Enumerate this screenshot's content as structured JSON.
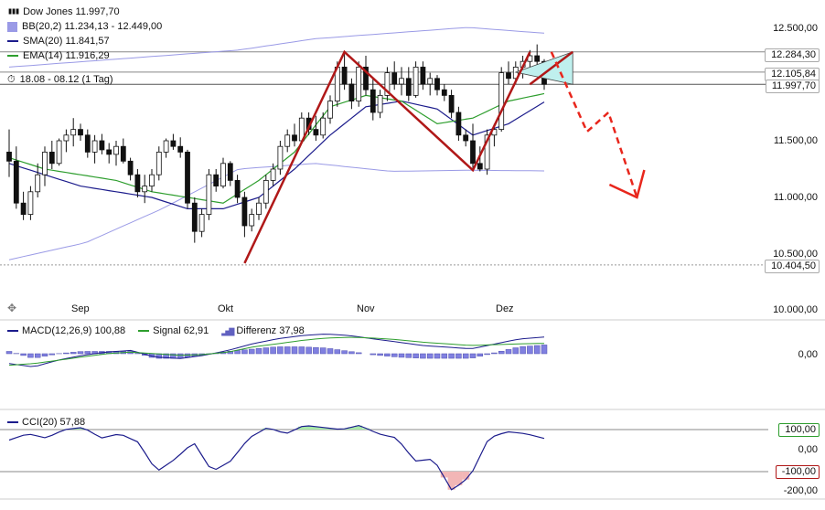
{
  "legend": {
    "title": "Dow Jones 11.997,70",
    "bb": "BB(20,2) 11.234,13 - 12.449,00",
    "sma": "SMA(20) 11.841,57",
    "ema": "EMA(14) 11.916,29",
    "period": "18.08 - 08.12 (1 Tag)"
  },
  "months": [
    "Sep",
    "Okt",
    "Nov",
    "Dez"
  ],
  "price_axis": [
    "12.500,00",
    "11.500,00",
    "11.000,00",
    "10.500,00",
    "10.000,00"
  ],
  "price_tags": [
    "12.284,30",
    "12.105,84",
    "11.997,70",
    "10.404,50"
  ],
  "macd_legend": {
    "macd": "MACD(12,26,9) 100,88",
    "signal": "Signal 62,91",
    "diff": "Differenz 37,98"
  },
  "macd_axis": "0,00",
  "cci_legend": "CCI(20) 57,88",
  "cci_axis": [
    "100,00",
    "0,00",
    "-100,00",
    "-200,00"
  ],
  "colors": {
    "up": "#ffffff",
    "down": "#111111",
    "bb": "#9a9ae6",
    "sma": "#1c1c8c",
    "ema": "#2e9e2e",
    "pattern": "#b01818",
    "triangle": "#bff0ee",
    "forecast": "#e8261c",
    "macd_hist": "#8080e0",
    "cci_pos": "#a8e8a8",
    "cci_neg": "#f2b6b6"
  },
  "chart_data": {
    "type": "candlestick",
    "title": "Dow Jones",
    "candles": [
      [
        11400,
        11600,
        11180,
        11320
      ],
      [
        11320,
        11450,
        10900,
        10950
      ],
      [
        10950,
        11050,
        10800,
        10850
      ],
      [
        10850,
        11100,
        10800,
        11050
      ],
      [
        11050,
        11300,
        11000,
        11200
      ],
      [
        11200,
        11450,
        11100,
        11400
      ],
      [
        11400,
        11500,
        11250,
        11300
      ],
      [
        11300,
        11520,
        11280,
        11500
      ],
      [
        11500,
        11600,
        11400,
        11550
      ],
      [
        11550,
        11700,
        11450,
        11600
      ],
      [
        11600,
        11650,
        11500,
        11550
      ],
      [
        11550,
        11600,
        11350,
        11400
      ],
      [
        11400,
        11550,
        11300,
        11500
      ],
      [
        11500,
        11560,
        11380,
        11420
      ],
      [
        11420,
        11480,
        11300,
        11380
      ],
      [
        11380,
        11500,
        11280,
        11450
      ],
      [
        11450,
        11520,
        11300,
        11320
      ],
      [
        11320,
        11350,
        11150,
        11200
      ],
      [
        11200,
        11250,
        11000,
        11050
      ],
      [
        11050,
        11200,
        10950,
        11100
      ],
      [
        11100,
        11250,
        11050,
        11200
      ],
      [
        11200,
        11450,
        11150,
        11400
      ],
      [
        11400,
        11520,
        11350,
        11500
      ],
      [
        11500,
        11560,
        11420,
        11450
      ],
      [
        11450,
        11530,
        11350,
        11400
      ],
      [
        11400,
        11420,
        10900,
        10950
      ],
      [
        10950,
        11000,
        10600,
        10700
      ],
      [
        10700,
        10900,
        10650,
        10850
      ],
      [
        10850,
        11250,
        10800,
        11200
      ],
      [
        11200,
        11250,
        11050,
        11100
      ],
      [
        11100,
        11350,
        11080,
        11300
      ],
      [
        11300,
        11320,
        11100,
        11150
      ],
      [
        11150,
        11200,
        10950,
        11000
      ],
      [
        11000,
        11050,
        10650,
        10750
      ],
      [
        10750,
        10900,
        10700,
        10850
      ],
      [
        10850,
        11000,
        10800,
        10950
      ],
      [
        10950,
        11200,
        10900,
        11150
      ],
      [
        11150,
        11300,
        11100,
        11250
      ],
      [
        11250,
        11500,
        11200,
        11450
      ],
      [
        11450,
        11600,
        11400,
        11550
      ],
      [
        11550,
        11650,
        11450,
        11500
      ],
      [
        11500,
        11750,
        11480,
        11700
      ],
      [
        11700,
        11750,
        11550,
        11600
      ],
      [
        11600,
        11720,
        11500,
        11550
      ],
      [
        11550,
        11750,
        11520,
        11700
      ],
      [
        11700,
        11900,
        11650,
        11850
      ],
      [
        11850,
        12200,
        11800,
        12150
      ],
      [
        12150,
        12280,
        11950,
        12000
      ],
      [
        12000,
        12050,
        11780,
        11850
      ],
      [
        11850,
        12200,
        11800,
        12150
      ],
      [
        12150,
        12250,
        11900,
        11950
      ],
      [
        11950,
        12050,
        11680,
        11750
      ],
      [
        11750,
        11950,
        11700,
        11900
      ],
      [
        11900,
        12150,
        11850,
        12100
      ],
      [
        12100,
        12200,
        11950,
        12000
      ],
      [
        12000,
        12150,
        11900,
        12050
      ],
      [
        12050,
        12150,
        11850,
        11900
      ],
      [
        11900,
        12200,
        11880,
        12150
      ],
      [
        12150,
        12200,
        11950,
        12000
      ],
      [
        12000,
        12100,
        11900,
        12050
      ],
      [
        12050,
        12080,
        11900,
        11950
      ],
      [
        11950,
        12000,
        11850,
        11900
      ],
      [
        11900,
        11950,
        11700,
        11750
      ],
      [
        11750,
        11800,
        11500,
        11550
      ],
      [
        11550,
        11600,
        11450,
        11500
      ],
      [
        11500,
        11650,
        11250,
        11300
      ],
      [
        11300,
        11450,
        11230,
        11250
      ],
      [
        11250,
        11600,
        11200,
        11550
      ],
      [
        11550,
        11650,
        11450,
        11600
      ],
      [
        11600,
        12150,
        11580,
        12100
      ],
      [
        12100,
        12200,
        12000,
        12050
      ],
      [
        12050,
        12200,
        12000,
        12150
      ],
      [
        12150,
        12250,
        12050,
        12200
      ],
      [
        12200,
        12300,
        12100,
        12250
      ],
      [
        12250,
        12350,
        12150,
        12200
      ],
      [
        12200,
        12220,
        11950,
        11998
      ]
    ],
    "bb_upper": [
      12150,
      12200,
      12250,
      12300,
      12400,
      12450,
      12500,
      12449
    ],
    "bb_lower": [
      10450,
      10600,
      10900,
      11250,
      11300,
      11230,
      11240,
      11234
    ],
    "sma": [
      11300,
      11200,
      11100,
      11050,
      11000,
      10900,
      10900,
      11000,
      11250,
      11550,
      11800,
      11850,
      11780,
      11550,
      11650,
      11842
    ],
    "ema": [
      11350,
      11250,
      11200,
      11150,
      11050,
      11000,
      10950,
      11150,
      11400,
      11800,
      11900,
      11850,
      11650,
      11700,
      11850,
      11916
    ],
    "pattern_points_index": [
      [
        33,
        10420
      ],
      [
        47,
        12284
      ],
      [
        65,
        11240
      ],
      [
        73,
        12284
      ]
    ],
    "forecast_index": [
      [
        76,
        12284
      ],
      [
        81,
        11580
      ],
      [
        84,
        11750
      ],
      [
        88,
        11000
      ]
    ],
    "macd": [
      -60,
      -80,
      -40,
      -10,
      10,
      20,
      -20,
      -30,
      -10,
      20,
      60,
      90,
      110,
      120,
      110,
      90,
      70,
      50,
      40,
      30,
      60,
      90,
      101
    ],
    "macd_signal": [
      -70,
      -60,
      -40,
      -20,
      0,
      10,
      0,
      -10,
      -5,
      10,
      40,
      60,
      80,
      95,
      100,
      95,
      85,
      70,
      60,
      50,
      55,
      60,
      63
    ],
    "cci": [
      50,
      80,
      60,
      100,
      110,
      60,
      80,
      40,
      -100,
      -40,
      40,
      -100,
      -50,
      60,
      110,
      80,
      120,
      110,
      100,
      120,
      80,
      60,
      -50,
      -40,
      -190,
      -120,
      60,
      90,
      80,
      58
    ]
  }
}
